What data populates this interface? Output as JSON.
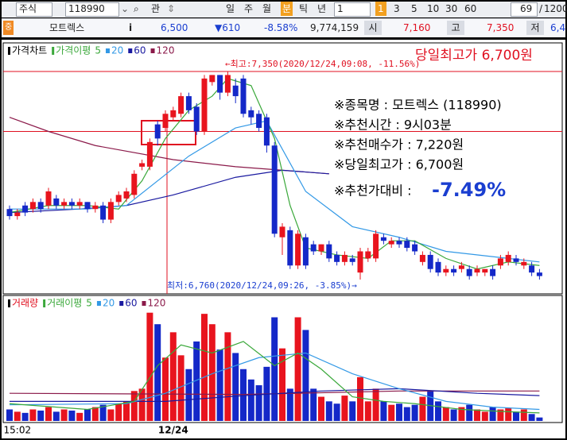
{
  "toolbar": {
    "market": "주식",
    "code": "118990",
    "watch": "관",
    "periods": [
      "일",
      "주",
      "월",
      "분",
      "틱",
      "년"
    ],
    "interval": "1",
    "steps": [
      "1",
      "3",
      "5",
      "10",
      "30",
      "60"
    ],
    "count": "69",
    "slash": "/",
    "total": "1200"
  },
  "quote": {
    "badge": "중",
    "name": "모트렉스",
    "info": "i",
    "price": "6,500",
    "change": "▼610",
    "rate": "-8.58%",
    "volume": "9,774,159",
    "open_label": "시",
    "open": "7,160",
    "high_label": "고",
    "high": "7,350",
    "low_label": "저",
    "low": "6,4"
  },
  "chart_data": [
    {
      "type": "candlestick",
      "title": "가격차트",
      "ma_title": "가격이평",
      "up_color": "#e8141e",
      "down_color": "#1428c8",
      "ylim": [
        6720,
        7420
      ],
      "ref_lines": [
        7350,
        7180
      ],
      "ohlc": [
        [
          6960,
          6970,
          6930,
          6940
        ],
        [
          6940,
          6960,
          6930,
          6950
        ],
        [
          6970,
          6980,
          6940,
          6950
        ],
        [
          6960,
          6990,
          6950,
          6980
        ],
        [
          6980,
          6990,
          6950,
          6960
        ],
        [
          6970,
          7020,
          6960,
          7010
        ],
        [
          6990,
          7000,
          6960,
          6970
        ],
        [
          6970,
          6990,
          6960,
          6980
        ],
        [
          6980,
          6990,
          6960,
          6970
        ],
        [
          6970,
          6990,
          6960,
          6980
        ],
        [
          6980,
          6980,
          6950,
          6960
        ],
        [
          6960,
          6980,
          6950,
          6970
        ],
        [
          6970,
          6980,
          6920,
          6930
        ],
        [
          6930,
          6990,
          6920,
          6980
        ],
        [
          6980,
          7010,
          6970,
          7000
        ],
        [
          6990,
          7020,
          6980,
          7010
        ],
        [
          7000,
          7070,
          6990,
          7060
        ],
        [
          7080,
          7100,
          7070,
          7090
        ],
        [
          7080,
          7160,
          7070,
          7150
        ],
        [
          7200,
          7210,
          7140,
          7160
        ],
        [
          7190,
          7240,
          7180,
          7230
        ],
        [
          7220,
          7250,
          7210,
          7240
        ],
        [
          7230,
          7290,
          7220,
          7280
        ],
        [
          7280,
          7290,
          7230,
          7240
        ],
        [
          7250,
          7260,
          7170,
          7180
        ],
        [
          7180,
          7340,
          7170,
          7330
        ],
        [
          7320,
          7340,
          7310,
          7340
        ],
        [
          7340,
          7340,
          7270,
          7290
        ],
        [
          7290,
          7350,
          7280,
          7340
        ],
        [
          7310,
          7330,
          7260,
          7280
        ],
        [
          7330,
          7340,
          7220,
          7230
        ],
        [
          7240,
          7250,
          7200,
          7220
        ],
        [
          7230,
          7240,
          7180,
          7190
        ],
        [
          7220,
          7230,
          7120,
          7140
        ],
        [
          7140,
          7150,
          6880,
          6890
        ],
        [
          6880,
          6920,
          6830,
          6910
        ],
        [
          6900,
          6910,
          6790,
          6800
        ],
        [
          6800,
          6900,
          6790,
          6890
        ],
        [
          6880,
          6890,
          6790,
          6800
        ],
        [
          6860,
          6870,
          6830,
          6840
        ],
        [
          6840,
          6860,
          6830,
          6860
        ],
        [
          6860,
          6870,
          6810,
          6820
        ],
        [
          6830,
          6840,
          6800,
          6810
        ],
        [
          6810,
          6840,
          6800,
          6830
        ],
        [
          6820,
          6830,
          6800,
          6810
        ],
        [
          6780,
          6850,
          6760,
          6840
        ],
        [
          6820,
          6850,
          6810,
          6840
        ],
        [
          6820,
          6900,
          6810,
          6890
        ],
        [
          6880,
          6890,
          6860,
          6870
        ],
        [
          6860,
          6880,
          6850,
          6870
        ],
        [
          6870,
          6880,
          6850,
          6860
        ],
        [
          6870,
          6880,
          6840,
          6850
        ],
        [
          6860,
          6870,
          6830,
          6840
        ],
        [
          6810,
          6840,
          6800,
          6830
        ],
        [
          6830,
          6840,
          6780,
          6790
        ],
        [
          6810,
          6820,
          6770,
          6780
        ],
        [
          6780,
          6800,
          6770,
          6790
        ],
        [
          6790,
          6800,
          6770,
          6780
        ],
        [
          6790,
          6810,
          6780,
          6800
        ],
        [
          6790,
          6800,
          6760,
          6770
        ],
        [
          6780,
          6800,
          6770,
          6790
        ],
        [
          6780,
          6790,
          6770,
          6790
        ],
        [
          6790,
          6800,
          6760,
          6770
        ],
        [
          6800,
          6830,
          6790,
          6820
        ],
        [
          6810,
          6840,
          6800,
          6830
        ],
        [
          6820,
          6830,
          6800,
          6810
        ],
        [
          6800,
          6820,
          6790,
          6810
        ],
        [
          6800,
          6810,
          6770,
          6780
        ],
        [
          6780,
          6790,
          6760,
          6770
        ]
      ],
      "ma": [
        {
          "name": "5",
          "color": "#3aa83a",
          "x": [
            0,
            5,
            10,
            14,
            17,
            20,
            23,
            26,
            28,
            31,
            34,
            36,
            38,
            42,
            46,
            49,
            52,
            56,
            60,
            64,
            68
          ],
          "values": [
            6950,
            6970,
            6970,
            6960,
            7040,
            7160,
            7240,
            7280,
            7330,
            7310,
            7160,
            6970,
            6850,
            6830,
            6820,
            6870,
            6870,
            6820,
            6790,
            6810,
            6800
          ]
        },
        {
          "name": "20",
          "color": "#3399e6",
          "x": [
            0,
            10,
            15,
            23,
            29,
            33,
            38,
            44,
            50,
            56,
            64,
            68
          ],
          "values": [
            6960,
            6960,
            6970,
            7110,
            7190,
            7210,
            7010,
            6910,
            6880,
            6840,
            6820,
            6810
          ]
        },
        {
          "name": "60",
          "color": "#1a1aa0",
          "x": [
            0,
            9,
            15,
            21,
            29,
            35,
            41
          ],
          "values": [
            6950,
            6960,
            6970,
            7000,
            7050,
            7070,
            7060
          ]
        },
        {
          "name": "120",
          "color": "#8b1a4a",
          "x": [
            0,
            5,
            11,
            21,
            29,
            41
          ],
          "values": [
            7220,
            7180,
            7140,
            7100,
            7080,
            7060
          ]
        }
      ],
      "annotations": {
        "high": "←최고:7,350(2020/12/24,09:08, -11.56%)",
        "low": "최저:6,760(2020/12/24,09:26, -3.85%)→",
        "day_high": "당일최고가 6,700원",
        "info": [
          "※종목명 : 모트렉스 (118990)",
          "※추천시간 : 9시03분",
          "※추천매수가 : 7,220원",
          "※당일최고가 : 6,700원",
          "※추천가대비 :"
        ],
        "info_rate": "-7.49%"
      }
    },
    {
      "type": "bar",
      "title": "거래량",
      "ma_title": "거래이평",
      "ylim": [
        0,
        100
      ],
      "categories": [
        null,
        "15:02",
        null,
        null,
        null,
        null,
        null,
        null,
        null,
        null,
        null,
        null,
        null,
        null,
        null,
        null,
        null,
        null,
        null,
        null,
        null,
        "12/24",
        null,
        null,
        null,
        null,
        null,
        null,
        null,
        null,
        null,
        null,
        null,
        null,
        null,
        null,
        null,
        null,
        null,
        null,
        null,
        null,
        null,
        null,
        null,
        null,
        null,
        null,
        null,
        null,
        null,
        null,
        null,
        null,
        null,
        null,
        null,
        null,
        null,
        null,
        null,
        null,
        null,
        null,
        null,
        null,
        null,
        null,
        null
      ],
      "values": [
        10,
        8,
        7,
        10,
        9,
        12,
        8,
        10,
        9,
        7,
        10,
        12,
        14,
        10,
        15,
        17,
        26,
        28,
        94,
        84,
        55,
        77,
        57,
        45,
        69,
        93,
        84,
        62,
        77,
        59,
        45,
        36,
        31,
        47,
        90,
        63,
        28,
        90,
        79,
        28,
        21,
        17,
        15,
        22,
        17,
        38,
        17,
        28,
        17,
        14,
        15,
        12,
        14,
        21,
        26,
        17,
        12,
        10,
        12,
        14,
        10,
        8,
        12,
        10,
        11,
        8,
        10,
        6,
        3
      ],
      "ma": [
        {
          "name": "5",
          "color": "#3aa83a",
          "x": [
            0,
            10,
            16,
            19,
            22,
            26,
            30,
            34,
            37,
            40,
            44,
            48,
            52,
            58,
            64,
            68
          ],
          "values": [
            15,
            10,
            17,
            48,
            66,
            59,
            69,
            48,
            59,
            45,
            21,
            17,
            15,
            10,
            8,
            7
          ]
        },
        {
          "name": "20",
          "color": "#3399e6",
          "x": [
            0,
            15,
            20,
            26,
            32,
            38,
            44,
            50,
            56,
            62,
            68
          ],
          "values": [
            14,
            15,
            24,
            41,
            55,
            59,
            41,
            28,
            17,
            12,
            10
          ]
        },
        {
          "name": "60",
          "color": "#1a1aa0",
          "x": [
            0,
            20,
            30,
            40,
            50,
            60,
            68
          ],
          "values": [
            17,
            17,
            22,
            26,
            28,
            24,
            22
          ]
        },
        {
          "name": "120",
          "color": "#8b1a4a",
          "x": [
            0,
            30,
            50,
            68
          ],
          "values": [
            24,
            23,
            26,
            26
          ]
        }
      ]
    }
  ]
}
